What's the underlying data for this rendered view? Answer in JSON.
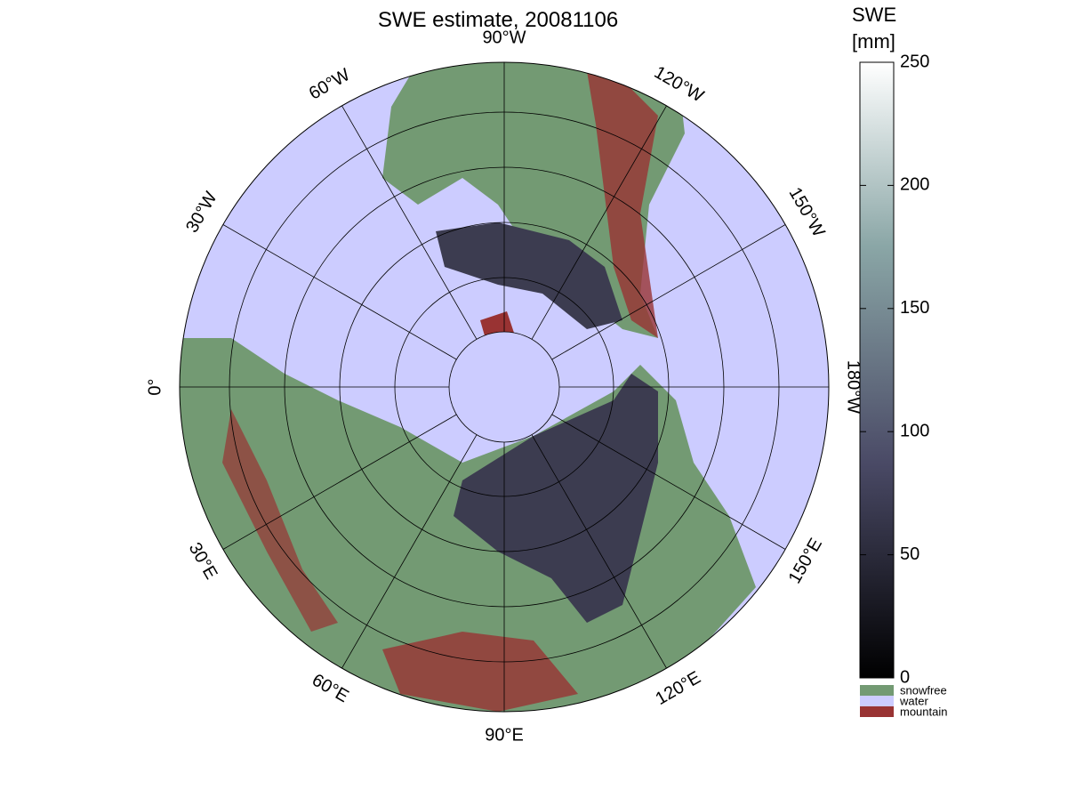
{
  "title": "SWE estimate, 20081106",
  "colorbar": {
    "label_line1": "SWE",
    "label_line2": "[mm]",
    "lim": [
      0,
      250
    ],
    "ticks": [
      0,
      50,
      100,
      150,
      200,
      250
    ]
  },
  "legend": [
    {
      "name": "snowfree",
      "color": "#739a73"
    },
    {
      "name": "water",
      "color": "#ccccff"
    },
    {
      "name": "mountain",
      "color": "#993333"
    }
  ],
  "longitude_labels": [
    "0°",
    "30°E",
    "60°E",
    "90°E",
    "120°E",
    "150°E",
    "180°W",
    "150°W",
    "120°W",
    "90°W",
    "60°W",
    "30°W"
  ]
}
